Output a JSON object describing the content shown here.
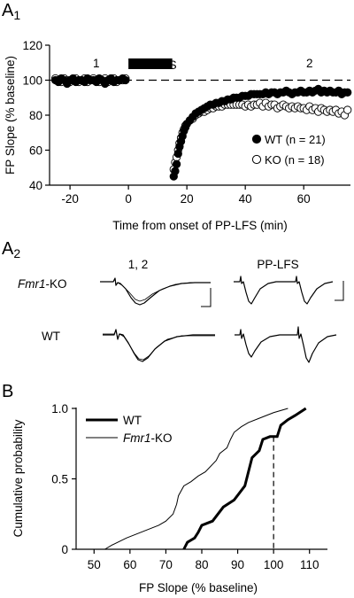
{
  "panels": {
    "a1": {
      "label_main": "A",
      "label_sub": "1"
    },
    "a2": {
      "label_main": "A",
      "label_sub": "2"
    },
    "b": {
      "label": "B"
    }
  },
  "chart_data": [
    {
      "type": "scatter",
      "xlabel": "Time from onset of PP-LFS (min)",
      "ylabel": "FP Slope (% baseline)",
      "xlim": [
        -27,
        76
      ],
      "ylim": [
        40,
        120
      ],
      "xticks": [
        -20,
        0,
        20,
        40,
        60
      ],
      "yticks": [
        40,
        60,
        80,
        100,
        120
      ],
      "baseline_y": 100,
      "stimulus": {
        "label": "PP-LFS",
        "start": 0,
        "end": 15
      },
      "annotations": [
        {
          "text": "1",
          "x": -11,
          "y": 110
        },
        {
          "text": "2",
          "x": 62,
          "y": 110
        }
      ],
      "series": [
        {
          "name": "WT (n = 21)",
          "marker": "filled",
          "points": [
            [
              -25,
              100
            ],
            [
              -24,
              99
            ],
            [
              -23,
              101
            ],
            [
              -22,
              100
            ],
            [
              -21,
              98
            ],
            [
              -20,
              100
            ],
            [
              -19,
              101
            ],
            [
              -18,
              99
            ],
            [
              -17,
              100
            ],
            [
              -16,
              100
            ],
            [
              -15,
              99
            ],
            [
              -14,
              101
            ],
            [
              -13,
              100
            ],
            [
              -12,
              100
            ],
            [
              -11,
              99
            ],
            [
              -10,
              101
            ],
            [
              -9,
              100
            ],
            [
              -8,
              98
            ],
            [
              -7,
              100
            ],
            [
              -6,
              101
            ],
            [
              -5,
              99
            ],
            [
              -4,
              100
            ],
            [
              -3,
              100
            ],
            [
              -2,
              101
            ],
            [
              -1,
              100
            ],
            [
              15.5,
              45
            ],
            [
              16,
              48
            ],
            [
              16.5,
              52
            ],
            [
              17,
              58
            ],
            [
              17.5,
              62
            ],
            [
              18,
              65
            ],
            [
              18.5,
              68
            ],
            [
              19,
              71
            ],
            [
              19.5,
              73
            ],
            [
              20,
              75
            ],
            [
              21,
              77
            ],
            [
              22,
              79
            ],
            [
              23,
              81
            ],
            [
              24,
              82
            ],
            [
              25,
              83
            ],
            [
              26,
              84
            ],
            [
              27,
              85
            ],
            [
              28,
              86
            ],
            [
              29,
              86
            ],
            [
              30,
              87
            ],
            [
              31,
              87
            ],
            [
              32,
              88
            ],
            [
              33,
              88
            ],
            [
              34,
              89
            ],
            [
              35,
              89
            ],
            [
              36,
              90
            ],
            [
              37,
              90
            ],
            [
              38,
              90
            ],
            [
              39,
              91
            ],
            [
              40,
              91
            ],
            [
              41,
              91
            ],
            [
              42,
              92
            ],
            [
              43,
              92
            ],
            [
              44,
              92
            ],
            [
              45,
              92
            ],
            [
              46,
              92
            ],
            [
              47,
              93
            ],
            [
              48,
              92
            ],
            [
              49,
              93
            ],
            [
              50,
              93
            ],
            [
              51,
              92
            ],
            [
              52,
              93
            ],
            [
              53,
              93
            ],
            [
              54,
              94
            ],
            [
              55,
              93
            ],
            [
              56,
              92
            ],
            [
              57,
              93
            ],
            [
              58,
              93
            ],
            [
              59,
              94
            ],
            [
              60,
              93
            ],
            [
              61,
              93
            ],
            [
              62,
              94
            ],
            [
              63,
              93
            ],
            [
              64,
              94
            ],
            [
              65,
              95
            ],
            [
              66,
              93
            ],
            [
              67,
              94
            ],
            [
              68,
              93
            ],
            [
              69,
              94
            ],
            [
              70,
              93
            ],
            [
              71,
              93
            ],
            [
              72,
              94
            ],
            [
              73,
              92
            ],
            [
              74,
              93
            ],
            [
              75,
              93
            ]
          ]
        },
        {
          "name": "KO (n = 18)",
          "marker": "open",
          "points": [
            [
              -25,
              101
            ],
            [
              -24,
              100
            ],
            [
              -23,
              99
            ],
            [
              -22,
              101
            ],
            [
              -21,
              100
            ],
            [
              -20,
              99
            ],
            [
              -19,
              100
            ],
            [
              -18,
              101
            ],
            [
              -17,
              99
            ],
            [
              -16,
              100
            ],
            [
              -15,
              101
            ],
            [
              -14,
              99
            ],
            [
              -13,
              100
            ],
            [
              -12,
              101
            ],
            [
              -11,
              100
            ],
            [
              -10,
              99
            ],
            [
              -9,
              100
            ],
            [
              -8,
              101
            ],
            [
              -7,
              99
            ],
            [
              -6,
              100
            ],
            [
              -5,
              101
            ],
            [
              -4,
              99
            ],
            [
              -3,
              100
            ],
            [
              -2,
              100
            ],
            [
              -1,
              101
            ],
            [
              15.5,
              49
            ],
            [
              16,
              53
            ],
            [
              16.5,
              56
            ],
            [
              17,
              60
            ],
            [
              17.5,
              64
            ],
            [
              18,
              67
            ],
            [
              18.5,
              70
            ],
            [
              19,
              72
            ],
            [
              19.5,
              74
            ],
            [
              20,
              75
            ],
            [
              21,
              77
            ],
            [
              22,
              78
            ],
            [
              23,
              80
            ],
            [
              24,
              81
            ],
            [
              25,
              82
            ],
            [
              26,
              82
            ],
            [
              27,
              83
            ],
            [
              28,
              84
            ],
            [
              29,
              84
            ],
            [
              30,
              85
            ],
            [
              31,
              85
            ],
            [
              32,
              85
            ],
            [
              33,
              86
            ],
            [
              34,
              86
            ],
            [
              35,
              86
            ],
            [
              36,
              86
            ],
            [
              37,
              86
            ],
            [
              38,
              86
            ],
            [
              39,
              86
            ],
            [
              40,
              85
            ],
            [
              41,
              86
            ],
            [
              42,
              85
            ],
            [
              43,
              86
            ],
            [
              44,
              86
            ],
            [
              45,
              87
            ],
            [
              46,
              85
            ],
            [
              47,
              87
            ],
            [
              48,
              85
            ],
            [
              49,
              86
            ],
            [
              50,
              86
            ],
            [
              51,
              84
            ],
            [
              52,
              85
            ],
            [
              53,
              86
            ],
            [
              54,
              85
            ],
            [
              55,
              84
            ],
            [
              56,
              85
            ],
            [
              57,
              84
            ],
            [
              58,
              85
            ],
            [
              59,
              84
            ],
            [
              60,
              84
            ],
            [
              61,
              83
            ],
            [
              62,
              85
            ],
            [
              63,
              83
            ],
            [
              64,
              84
            ],
            [
              65,
              82
            ],
            [
              66,
              84
            ],
            [
              67,
              83
            ],
            [
              68,
              82
            ],
            [
              69,
              83
            ],
            [
              70,
              82
            ],
            [
              71,
              83
            ],
            [
              72,
              81
            ],
            [
              73,
              82
            ],
            [
              74,
              80
            ],
            [
              75,
              83
            ]
          ]
        }
      ]
    },
    {
      "type": "line",
      "title": "",
      "xlabel": "FP Slope (% baseline)",
      "ylabel": "Cumulative probability",
      "xlim": [
        45,
        115
      ],
      "ylim": [
        0,
        1.0
      ],
      "xticks": [
        50,
        60,
        70,
        80,
        90,
        100,
        110
      ],
      "yticks": [
        0,
        0.5,
        1.0
      ],
      "ytick_labels": [
        "0",
        "0.5",
        "1.0"
      ],
      "reference_x": 100,
      "series": [
        {
          "name": "WT",
          "weight": "thick",
          "points": [
            [
              75,
              0
            ],
            [
              76,
              0.05
            ],
            [
              78,
              0.08
            ],
            [
              79,
              0.12
            ],
            [
              80,
              0.17
            ],
            [
              83,
              0.2
            ],
            [
              86,
              0.3
            ],
            [
              89,
              0.35
            ],
            [
              92,
              0.45
            ],
            [
              93,
              0.55
            ],
            [
              94,
              0.65
            ],
            [
              96,
              0.7
            ],
            [
              97,
              0.78
            ],
            [
              99,
              0.8
            ],
            [
              101,
              0.8
            ],
            [
              102,
              0.88
            ],
            [
              104,
              0.92
            ],
            [
              106,
              0.95
            ],
            [
              109,
              1.0
            ]
          ]
        },
        {
          "name": "Fmr1-KO",
          "weight": "thin",
          "points": [
            [
              53,
              0
            ],
            [
              55,
              0.03
            ],
            [
              59,
              0.08
            ],
            [
              64,
              0.13
            ],
            [
              68,
              0.17
            ],
            [
              70,
              0.2
            ],
            [
              72,
              0.25
            ],
            [
              73,
              0.32
            ],
            [
              73.5,
              0.38
            ],
            [
              75,
              0.45
            ],
            [
              77,
              0.48
            ],
            [
              79,
              0.52
            ],
            [
              81,
              0.55
            ],
            [
              84,
              0.63
            ],
            [
              85,
              0.68
            ],
            [
              87,
              0.72
            ],
            [
              88,
              0.78
            ],
            [
              89,
              0.83
            ],
            [
              91,
              0.87
            ],
            [
              93,
              0.9
            ],
            [
              96,
              0.93
            ],
            [
              100,
              0.97
            ],
            [
              104,
              1.0
            ]
          ]
        }
      ]
    }
  ],
  "traces": {
    "column_labels": {
      "left": "1, 2",
      "right": "PP-LFS"
    },
    "row_labels": {
      "ko_italic": "Fmr1",
      "ko_rest": "-KO",
      "wt": "WT"
    }
  }
}
